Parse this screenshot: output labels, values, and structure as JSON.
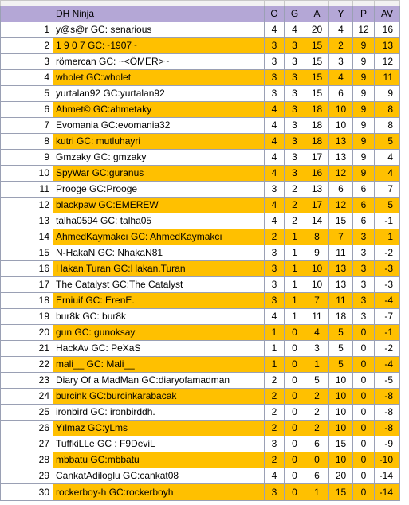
{
  "spreadsheet": {
    "title": "DH Ninja",
    "columns": [
      "O",
      "G",
      "A",
      "Y",
      "P",
      "AV"
    ],
    "rows": [
      {
        "rank": "1",
        "name": "y@s@r GC: senarious",
        "O": "4",
        "G": "4",
        "A": "20",
        "Y": "4",
        "P": "12",
        "AV": "16",
        "color": "white"
      },
      {
        "rank": "2",
        "name": "1 9 0 7 GC:~1907~",
        "O": "3",
        "G": "3",
        "A": "15",
        "Y": "2",
        "P": "9",
        "AV": "13",
        "color": "orange"
      },
      {
        "rank": "3",
        "name": "römercan GC: ~<ÖMER>~",
        "O": "3",
        "G": "3",
        "A": "15",
        "Y": "3",
        "P": "9",
        "AV": "12",
        "color": "white"
      },
      {
        "rank": "4",
        "name": "wholet GC:wholet",
        "O": "3",
        "G": "3",
        "A": "15",
        "Y": "4",
        "P": "9",
        "AV": "11",
        "color": "orange"
      },
      {
        "rank": "5",
        "name": "yurtalan92 GC:yurtalan92",
        "O": "3",
        "G": "3",
        "A": "15",
        "Y": "6",
        "P": "9",
        "AV": "9",
        "color": "white"
      },
      {
        "rank": "6",
        "name": "Ahmet© GC:ahmetaky",
        "O": "4",
        "G": "3",
        "A": "18",
        "Y": "10",
        "P": "9",
        "AV": "8",
        "color": "orange"
      },
      {
        "rank": "7",
        "name": "Evomania GC:evomania32",
        "O": "4",
        "G": "3",
        "A": "18",
        "Y": "10",
        "P": "9",
        "AV": "8",
        "color": "white"
      },
      {
        "rank": "8",
        "name": "kutri GC: mutluhayri",
        "O": "4",
        "G": "3",
        "A": "18",
        "Y": "13",
        "P": "9",
        "AV": "5",
        "color": "orange"
      },
      {
        "rank": "9",
        "name": "Gmzaky GC: gmzaky",
        "O": "4",
        "G": "3",
        "A": "17",
        "Y": "13",
        "P": "9",
        "AV": "4",
        "color": "white"
      },
      {
        "rank": "10",
        "name": "SpyWar GC:guranus",
        "O": "4",
        "G": "3",
        "A": "16",
        "Y": "12",
        "P": "9",
        "AV": "4",
        "color": "orange"
      },
      {
        "rank": "11",
        "name": "Prooge GC:Prooge",
        "O": "3",
        "G": "2",
        "A": "13",
        "Y": "6",
        "P": "6",
        "AV": "7",
        "color": "white"
      },
      {
        "rank": "12",
        "name": "blackpaw GC:EMEREW",
        "O": "4",
        "G": "2",
        "A": "17",
        "Y": "12",
        "P": "6",
        "AV": "5",
        "color": "orange"
      },
      {
        "rank": "13",
        "name": "talha0594 GC: talha05",
        "O": "4",
        "G": "2",
        "A": "14",
        "Y": "15",
        "P": "6",
        "AV": "-1",
        "color": "white"
      },
      {
        "rank": "14",
        "name": "AhmedKaymakcı GC: AhmedKaymakcı",
        "O": "2",
        "G": "1",
        "A": "8",
        "Y": "7",
        "P": "3",
        "AV": "1",
        "color": "orange"
      },
      {
        "rank": "15",
        "name": "N-HakaN GC: NhakaN81",
        "O": "3",
        "G": "1",
        "A": "9",
        "Y": "11",
        "P": "3",
        "AV": "-2",
        "color": "white"
      },
      {
        "rank": "16",
        "name": "Hakan.Turan GC:Hakan.Turan",
        "O": "3",
        "G": "1",
        "A": "10",
        "Y": "13",
        "P": "3",
        "AV": "-3",
        "color": "orange"
      },
      {
        "rank": "17",
        "name": "The Catalyst GC:The Catalyst",
        "O": "3",
        "G": "1",
        "A": "10",
        "Y": "13",
        "P": "3",
        "AV": "-3",
        "color": "white"
      },
      {
        "rank": "18",
        "name": "Erniuif GC: ErenE.",
        "O": "3",
        "G": "1",
        "A": "7",
        "Y": "11",
        "P": "3",
        "AV": "-4",
        "color": "orange"
      },
      {
        "rank": "19",
        "name": "bur8k GC: bur8k",
        "O": "4",
        "G": "1",
        "A": "11",
        "Y": "18",
        "P": "3",
        "AV": "-7",
        "color": "white"
      },
      {
        "rank": "20",
        "name": "gun GC: gunoksay",
        "O": "1",
        "G": "0",
        "A": "4",
        "Y": "5",
        "P": "0",
        "AV": "-1",
        "color": "orange"
      },
      {
        "rank": "21",
        "name": "HackAv GC: PeXaS",
        "O": "1",
        "G": "0",
        "A": "3",
        "Y": "5",
        "P": "0",
        "AV": "-2",
        "color": "white"
      },
      {
        "rank": "22",
        "name": "mali__ GC: Mali__",
        "O": "1",
        "G": "0",
        "A": "1",
        "Y": "5",
        "P": "0",
        "AV": "-4",
        "color": "orange"
      },
      {
        "rank": "23",
        "name": "Diary Of a MadMan GC:diaryofamadman",
        "O": "2",
        "G": "0",
        "A": "5",
        "Y": "10",
        "P": "0",
        "AV": "-5",
        "color": "white"
      },
      {
        "rank": "24",
        "name": "burcink GC:burcinkarabacak",
        "O": "2",
        "G": "0",
        "A": "2",
        "Y": "10",
        "P": "0",
        "AV": "-8",
        "color": "orange"
      },
      {
        "rank": "25",
        "name": "ironbird GC: ironbirddh.",
        "O": "2",
        "G": "0",
        "A": "2",
        "Y": "10",
        "P": "0",
        "AV": "-8",
        "color": "white"
      },
      {
        "rank": "26",
        "name": "Yılmaz GC:yLms",
        "O": "2",
        "G": "0",
        "A": "2",
        "Y": "10",
        "P": "0",
        "AV": "-8",
        "color": "orange"
      },
      {
        "rank": "27",
        "name": "TuffkiLLe GC : F9DeviL",
        "O": "3",
        "G": "0",
        "A": "6",
        "Y": "15",
        "P": "0",
        "AV": "-9",
        "color": "white"
      },
      {
        "rank": "28",
        "name": "mbbatu GC:mbbatu",
        "O": "2",
        "G": "0",
        "A": "0",
        "Y": "10",
        "P": "0",
        "AV": "-10",
        "color": "orange"
      },
      {
        "rank": "29",
        "name": "CankatAdiloglu GC:cankat08",
        "O": "4",
        "G": "0",
        "A": "6",
        "Y": "20",
        "P": "0",
        "AV": "-14",
        "color": "white"
      },
      {
        "rank": "30",
        "name": "rockerboy-h GC:rockerboyh",
        "O": "3",
        "G": "0",
        "A": "1",
        "Y": "15",
        "P": "0",
        "AV": "-14",
        "color": "orange"
      }
    ]
  },
  "colors": {
    "header_bg": "#b4a7d6",
    "orange_row": "#ffc000",
    "white_row": "#ffffff",
    "grid": "#9aa0b4"
  }
}
